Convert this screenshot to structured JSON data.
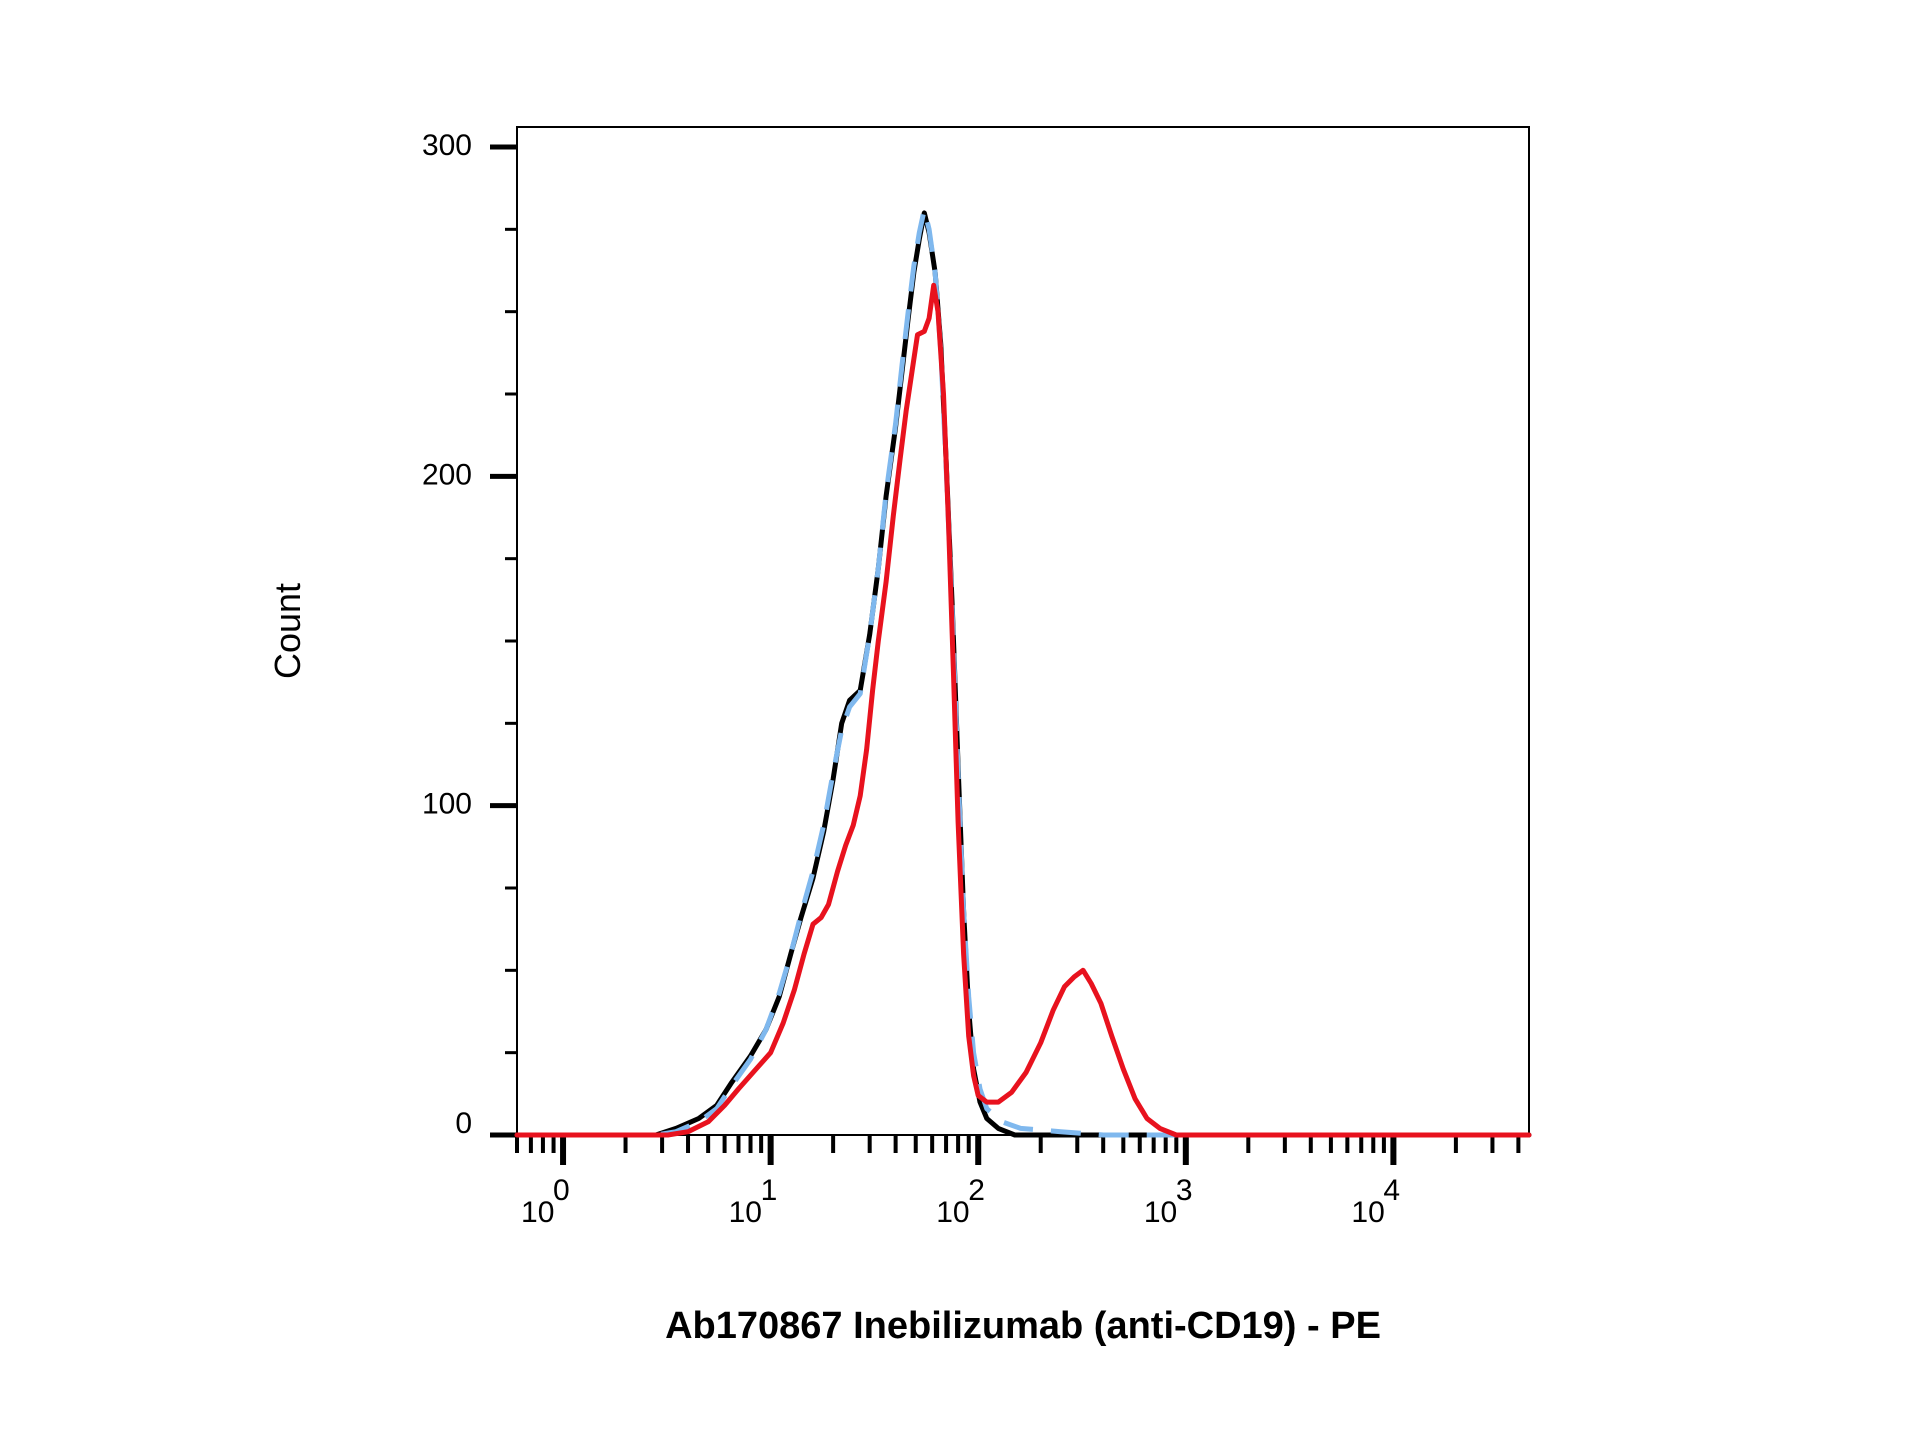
{
  "chart_data": {
    "type": "line",
    "title": "",
    "xlabel": "Ab170867 Inebilizumab (anti-CD19) - PE",
    "ylabel": "Count",
    "x_scale": "log",
    "xlim": [
      0.6,
      45000
    ],
    "ylim": [
      0,
      300
    ],
    "x_ticks": [
      {
        "value": 1,
        "base": "10",
        "exp": "0"
      },
      {
        "value": 10,
        "base": "10",
        "exp": "1"
      },
      {
        "value": 100,
        "base": "10",
        "exp": "2"
      },
      {
        "value": 1000,
        "base": "10",
        "exp": "3"
      },
      {
        "value": 10000,
        "base": "10",
        "exp": "4"
      }
    ],
    "y_ticks": [
      {
        "value": 0,
        "label": "0"
      },
      {
        "value": 100,
        "label": "100"
      },
      {
        "value": 200,
        "label": "200"
      },
      {
        "value": 300,
        "label": "300"
      }
    ],
    "grid": false,
    "legend": "none",
    "series": [
      {
        "color": "#000000",
        "style": "solid",
        "points": [
          [
            0.6,
            0
          ],
          [
            2.8,
            0
          ],
          [
            3.5,
            2
          ],
          [
            4.5,
            5
          ],
          [
            5.5,
            9
          ],
          [
            6.5,
            16
          ],
          [
            8,
            24
          ],
          [
            9.5,
            32
          ],
          [
            11,
            42
          ],
          [
            12.5,
            55
          ],
          [
            14,
            66
          ],
          [
            16,
            78
          ],
          [
            18,
            92
          ],
          [
            20,
            108
          ],
          [
            22,
            125
          ],
          [
            24,
            132
          ],
          [
            27,
            135
          ],
          [
            30,
            152
          ],
          [
            33,
            172
          ],
          [
            36,
            194
          ],
          [
            40,
            215
          ],
          [
            43,
            232
          ],
          [
            46,
            248
          ],
          [
            49,
            262
          ],
          [
            52,
            272
          ],
          [
            55,
            280
          ],
          [
            58,
            274
          ],
          [
            62,
            262
          ],
          [
            66,
            240
          ],
          [
            70,
            205
          ],
          [
            75,
            160
          ],
          [
            80,
            112
          ],
          [
            85,
            68
          ],
          [
            90,
            38
          ],
          [
            95,
            20
          ],
          [
            102,
            10
          ],
          [
            110,
            5
          ],
          [
            125,
            2
          ],
          [
            150,
            0
          ],
          [
            45000,
            0
          ]
        ]
      },
      {
        "color": "#7fb8ee",
        "style": "dashed",
        "points": [
          [
            0.6,
            0
          ],
          [
            2.8,
            0
          ],
          [
            3.5,
            1
          ],
          [
            4.5,
            4
          ],
          [
            5.5,
            8
          ],
          [
            6.5,
            15
          ],
          [
            8,
            23
          ],
          [
            9.5,
            32
          ],
          [
            11,
            43
          ],
          [
            12.5,
            55
          ],
          [
            14,
            67
          ],
          [
            16,
            80
          ],
          [
            18,
            94
          ],
          [
            20,
            110
          ],
          [
            22,
            123
          ],
          [
            24,
            130
          ],
          [
            27,
            134
          ],
          [
            30,
            152
          ],
          [
            33,
            172
          ],
          [
            36,
            195
          ],
          [
            40,
            216
          ],
          [
            43,
            234
          ],
          [
            46,
            250
          ],
          [
            49,
            264
          ],
          [
            52,
            274
          ],
          [
            55,
            281
          ],
          [
            58,
            275
          ],
          [
            62,
            262
          ],
          [
            66,
            238
          ],
          [
            70,
            203
          ],
          [
            75,
            158
          ],
          [
            80,
            110
          ],
          [
            85,
            68
          ],
          [
            90,
            42
          ],
          [
            95,
            25
          ],
          [
            102,
            14
          ],
          [
            110,
            8
          ],
          [
            130,
            4
          ],
          [
            160,
            2
          ],
          [
            250,
            1
          ],
          [
            400,
            0
          ],
          [
            45000,
            0
          ]
        ]
      },
      {
        "color": "#e8121e",
        "style": "solid",
        "points": [
          [
            0.6,
            0
          ],
          [
            3.2,
            0
          ],
          [
            4,
            1
          ],
          [
            5,
            4
          ],
          [
            6,
            9
          ],
          [
            7,
            14
          ],
          [
            8.5,
            20
          ],
          [
            10,
            25
          ],
          [
            11.5,
            34
          ],
          [
            13,
            44
          ],
          [
            14.5,
            55
          ],
          [
            16,
            64
          ],
          [
            17.5,
            66
          ],
          [
            19,
            70
          ],
          [
            21,
            80
          ],
          [
            23,
            88
          ],
          [
            25,
            94
          ],
          [
            27,
            103
          ],
          [
            29,
            117
          ],
          [
            31,
            135
          ],
          [
            33,
            150
          ],
          [
            36,
            168
          ],
          [
            39,
            188
          ],
          [
            42,
            205
          ],
          [
            45,
            220
          ],
          [
            48,
            232
          ],
          [
            51,
            243
          ],
          [
            55,
            244
          ],
          [
            58,
            248
          ],
          [
            61,
            258
          ],
          [
            64,
            250
          ],
          [
            68,
            225
          ],
          [
            72,
            185
          ],
          [
            76,
            140
          ],
          [
            80,
            95
          ],
          [
            85,
            55
          ],
          [
            90,
            30
          ],
          [
            95,
            18
          ],
          [
            100,
            12
          ],
          [
            110,
            10
          ],
          [
            125,
            10
          ],
          [
            145,
            13
          ],
          [
            170,
            19
          ],
          [
            200,
            28
          ],
          [
            230,
            38
          ],
          [
            260,
            45
          ],
          [
            290,
            48
          ],
          [
            320,
            50
          ],
          [
            350,
            46
          ],
          [
            390,
            40
          ],
          [
            440,
            30
          ],
          [
            500,
            20
          ],
          [
            570,
            11
          ],
          [
            650,
            5
          ],
          [
            750,
            2
          ],
          [
            900,
            0
          ],
          [
            45000,
            0
          ]
        ]
      }
    ]
  }
}
